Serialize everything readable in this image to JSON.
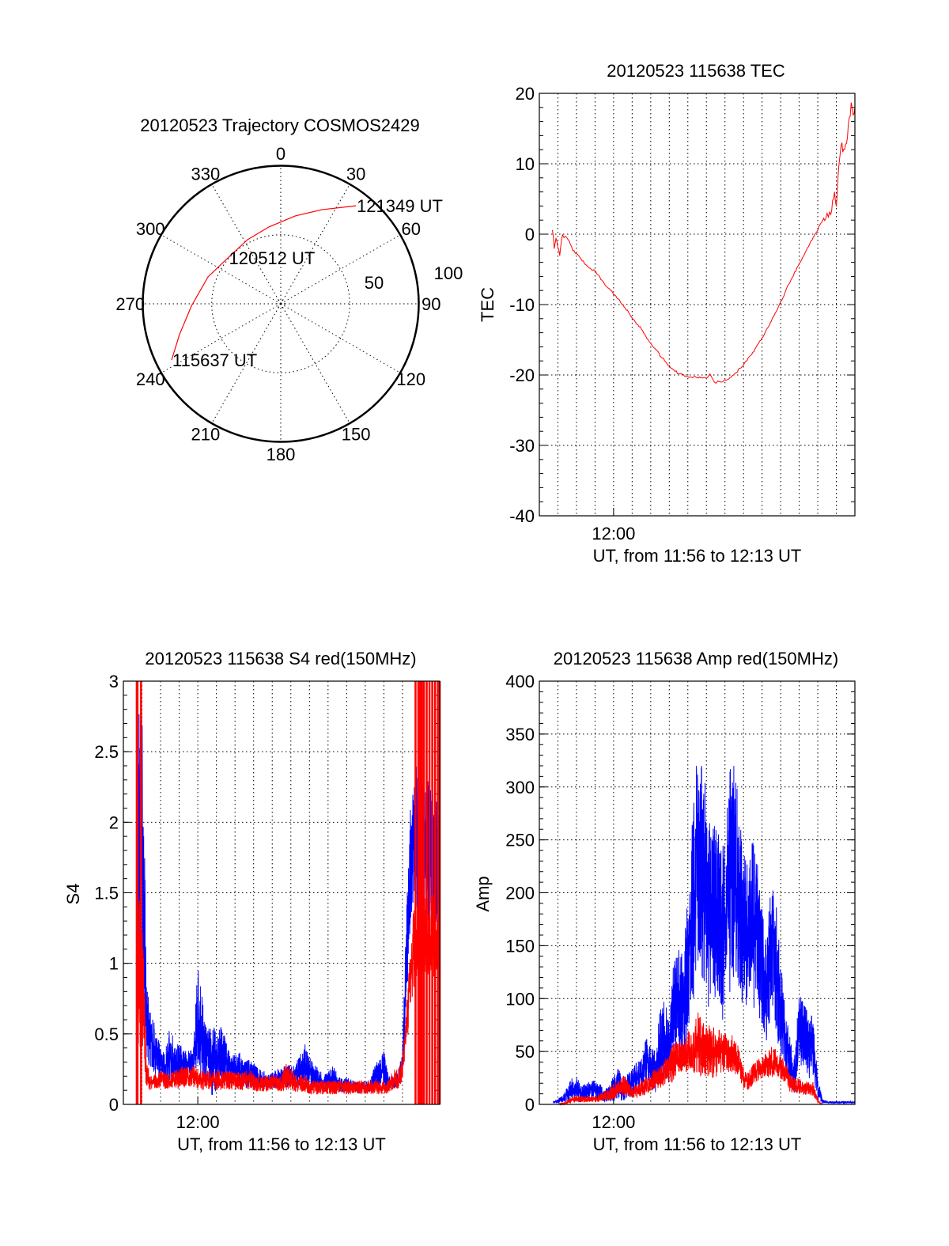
{
  "colors": {
    "red": "#ff0000",
    "blue": "#0000ff",
    "axis": "#000000"
  },
  "polar": {
    "title": "20120523 Trajectory COSMOS2429",
    "azimuth_labels": [
      "0",
      "30",
      "60",
      "90",
      "120",
      "150",
      "180",
      "210",
      "240",
      "270",
      "300",
      "330"
    ],
    "radial_labels": [
      "50",
      "100"
    ],
    "radial_max": 100,
    "trajectory": [
      {
        "az": 242.8,
        "r": 88.9
      },
      {
        "az": 253.1,
        "r": 76.7
      },
      {
        "az": 268.5,
        "r": 64.8
      },
      {
        "az": 290.3,
        "r": 56.2
      },
      {
        "az": 310.0,
        "r": 50.8
      },
      {
        "az": 332.6,
        "r": 52.3
      },
      {
        "az": 351.2,
        "r": 56.3
      },
      {
        "az": 9.2,
        "r": 64.4
      },
      {
        "az": 23.6,
        "r": 74.4
      },
      {
        "az": 37.5,
        "r": 89.5
      }
    ],
    "time_labels": [
      {
        "text": "115637 UT",
        "az": 242.8,
        "r": 88.9
      },
      {
        "text": "120512 UT",
        "az": 311.0,
        "r": 50.5
      },
      {
        "text": "121349 UT",
        "az": 37.5,
        "r": 89.5
      }
    ]
  },
  "chart_data": [
    {
      "id": "tec",
      "type": "line",
      "title": "20120523 115638 TEC",
      "ylabel": "TEC",
      "xlabel": "UT, from 11:56 to 12:13 UT",
      "x_unit": "minutes after 11:56 UT",
      "xlim": [
        0,
        17
      ],
      "ylim": [
        -40,
        20
      ],
      "x_tick_labels": [
        {
          "t": 4,
          "label": "12:00"
        }
      ],
      "y_ticks": [
        "-40",
        "-30",
        "-20",
        "-10",
        "0",
        "10",
        "20"
      ],
      "y_minor": 2,
      "grid": true,
      "series": [
        {
          "name": "TEC",
          "color": "#ff0000",
          "x": [
            0.7,
            0.8,
            0.9,
            1.0,
            1.1,
            1.15,
            1.25,
            1.4,
            1.6,
            1.8,
            2.0,
            2.5,
            3.0,
            3.5,
            4.0,
            4.5,
            5.0,
            5.5,
            6.0,
            6.5,
            7.0,
            7.5,
            8.0,
            8.5,
            9.0,
            9.2,
            9.4,
            9.8,
            10.2,
            10.6,
            11.0,
            11.5,
            12.0,
            12.5,
            13.0,
            13.5,
            14.0,
            14.5,
            15.0,
            15.5,
            15.7,
            15.8,
            15.9,
            16.0,
            16.1,
            16.2,
            16.3,
            16.4,
            16.5,
            16.6,
            16.7,
            16.8,
            16.9,
            17.0
          ],
          "y": [
            0,
            -1.5,
            -0.5,
            -2,
            -3,
            -1.5,
            -0.5,
            -0.3,
            -1,
            -2.2,
            -2.8,
            -4.3,
            -5.3,
            -7,
            -8.5,
            -10,
            -11.8,
            -13.5,
            -15.5,
            -17.2,
            -18.7,
            -19.8,
            -20.2,
            -20.3,
            -20.5,
            -20,
            -21,
            -21,
            -20.5,
            -19.7,
            -18.5,
            -16.8,
            -14.7,
            -12.3,
            -9.7,
            -6.7,
            -4.2,
            -1.7,
            0.7,
            3.0,
            2.8,
            5,
            5.8,
            4.5,
            8,
            11.5,
            12.5,
            11.8,
            12.5,
            14,
            16.5,
            18.2,
            16.8,
            18
          ]
        }
      ]
    },
    {
      "id": "s4",
      "type": "line",
      "title": "20120523 115638 S4 red(150MHz)",
      "ylabel": "S4",
      "xlabel": "UT, from 11:56 to 12:13 UT",
      "x_unit": "minutes after 11:56 UT",
      "xlim": [
        0,
        17
      ],
      "ylim": [
        0,
        3
      ],
      "x_tick_labels": [
        {
          "t": 4,
          "label": "12:00"
        }
      ],
      "y_ticks": [
        "0",
        "0.5",
        "1",
        "1.5",
        "2",
        "2.5",
        "3"
      ],
      "y_minor": 0.1,
      "grid": true,
      "t_start": 0.75,
      "t_step": 0.25,
      "series": [
        {
          "name": "blue",
          "color": "#0000ff",
          "mean": [
            1.9,
            1.9,
            0.6,
            0.45,
            0.35,
            0.3,
            0.28,
            0.35,
            0.3,
            0.3,
            0.28,
            0.3,
            0.3,
            0.6,
            0.45,
            0.35,
            0.35,
            0.3,
            0.35,
            0.3,
            0.25,
            0.25,
            0.25,
            0.2,
            0.22,
            0.2,
            0.18,
            0.18,
            0.15,
            0.17,
            0.18,
            0.2,
            0.2,
            0.2,
            0.2,
            0.25,
            0.28,
            0.25,
            0.2,
            0.18,
            0.15,
            0.16,
            0.2,
            0.16,
            0.13,
            0.14,
            0.13,
            0.12,
            0.12,
            0.12,
            0.13,
            0.2,
            0.22,
            0.25,
            0.15,
            0.15,
            0.17,
            0.3,
            1.2,
            1.8,
            1.8,
            1.8,
            1.8,
            1.8,
            1.8,
            1.7
          ],
          "spread": [
            1.1,
            1.1,
            0.3,
            0.2,
            0.2,
            0.12,
            0.1,
            0.2,
            0.15,
            0.15,
            0.1,
            0.1,
            0.1,
            0.4,
            0.3,
            0.2,
            0.3,
            0.2,
            0.25,
            0.15,
            0.1,
            0.1,
            0.12,
            0.1,
            0.1,
            0.1,
            0.07,
            0.07,
            0.06,
            0.06,
            0.07,
            0.07,
            0.08,
            0.08,
            0.08,
            0.12,
            0.15,
            0.1,
            0.08,
            0.08,
            0.06,
            0.07,
            0.08,
            0.06,
            0.05,
            0.05,
            0.05,
            0.04,
            0.04,
            0.04,
            0.04,
            0.08,
            0.1,
            0.15,
            0.05,
            0.05,
            0.05,
            0.1,
            0.4,
            0.5,
            0.6,
            0.5,
            0.5,
            0.5,
            0.5,
            0.4
          ]
        },
        {
          "name": "red",
          "color": "#ff0000",
          "mean": [
            1.2,
            1.0,
            0.2,
            0.15,
            0.17,
            0.18,
            0.18,
            0.16,
            0.18,
            0.18,
            0.2,
            0.2,
            0.2,
            0.18,
            0.17,
            0.17,
            0.17,
            0.17,
            0.17,
            0.17,
            0.17,
            0.17,
            0.17,
            0.17,
            0.17,
            0.17,
            0.15,
            0.15,
            0.15,
            0.15,
            0.15,
            0.15,
            0.2,
            0.18,
            0.15,
            0.15,
            0.15,
            0.12,
            0.12,
            0.12,
            0.12,
            0.12,
            0.12,
            0.12,
            0.12,
            0.12,
            0.12,
            0.12,
            0.12,
            0.12,
            0.12,
            0.12,
            0.12,
            0.12,
            0.12,
            0.18,
            0.18,
            0.25,
            0.6,
            1.0,
            1.2,
            1.2,
            1.2,
            1.2,
            1.2,
            1.2
          ],
          "spread": [
            0.8,
            0.6,
            0.1,
            0.05,
            0.06,
            0.06,
            0.07,
            0.06,
            0.07,
            0.07,
            0.08,
            0.08,
            0.08,
            0.07,
            0.07,
            0.07,
            0.07,
            0.07,
            0.07,
            0.07,
            0.07,
            0.07,
            0.07,
            0.07,
            0.07,
            0.07,
            0.06,
            0.06,
            0.06,
            0.06,
            0.06,
            0.06,
            0.1,
            0.08,
            0.06,
            0.06,
            0.06,
            0.05,
            0.05,
            0.05,
            0.05,
            0.05,
            0.05,
            0.05,
            0.05,
            0.05,
            0.05,
            0.05,
            0.05,
            0.05,
            0.05,
            0.05,
            0.05,
            0.05,
            0.05,
            0.07,
            0.07,
            0.08,
            0.15,
            0.3,
            0.3,
            0.3,
            0.3,
            0.3,
            0.3,
            0.3
          ],
          "full_range_spikes": [
            0.72,
            0.76,
            0.95,
            15.7,
            15.85,
            15.95,
            16.05,
            16.15,
            16.3,
            16.45,
            16.6,
            16.75,
            16.9,
            17.0
          ]
        }
      ]
    },
    {
      "id": "amp",
      "type": "line",
      "title": "20120523 115638 Amp red(150MHz)",
      "ylabel": "Amp",
      "xlabel": "UT, from 11:56 to 12:13 UT",
      "x_unit": "minutes after 11:56 UT",
      "xlim": [
        0,
        17
      ],
      "ylim": [
        0,
        400
      ],
      "x_tick_labels": [
        {
          "t": 4,
          "label": "12:00"
        }
      ],
      "y_ticks": [
        "0",
        "50",
        "100",
        "150",
        "200",
        "250",
        "300",
        "350",
        "400"
      ],
      "y_minor": 10,
      "grid": true,
      "t_start": 0.75,
      "t_step": 0.25,
      "series": [
        {
          "name": "blue",
          "color": "#0000ff",
          "mean": [
            2,
            3,
            5,
            10,
            15,
            15,
            10,
            12,
            14,
            15,
            12,
            8,
            10,
            15,
            20,
            12,
            18,
            20,
            25,
            25,
            40,
            35,
            30,
            55,
            60,
            50,
            90,
            100,
            90,
            130,
            180,
            230,
            220,
            200,
            170,
            190,
            160,
            170,
            210,
            220,
            200,
            160,
            150,
            170,
            160,
            130,
            110,
            150,
            130,
            90,
            60,
            40,
            30,
            70,
            65,
            60,
            50,
            15,
            3,
            2,
            2,
            2,
            2,
            2,
            2,
            2
          ],
          "spread": [
            1,
            2,
            4,
            7,
            10,
            12,
            8,
            8,
            10,
            10,
            8,
            6,
            8,
            12,
            15,
            10,
            12,
            15,
            15,
            18,
            25,
            20,
            20,
            35,
            40,
            30,
            50,
            50,
            50,
            70,
            90,
            100,
            100,
            100,
            90,
            90,
            80,
            90,
            110,
            100,
            90,
            80,
            80,
            80,
            70,
            60,
            50,
            60,
            60,
            50,
            30,
            25,
            20,
            35,
            30,
            35,
            30,
            12,
            2,
            1,
            1,
            1,
            1,
            1,
            1,
            1
          ]
        },
        {
          "name": "red",
          "color": "#ff0000",
          "mean": [
            0,
            0,
            1,
            2,
            5,
            5,
            5,
            5,
            5,
            5,
            6,
            8,
            10,
            12,
            15,
            18,
            15,
            12,
            12,
            15,
            18,
            20,
            25,
            25,
            30,
            35,
            40,
            45,
            45,
            50,
            45,
            60,
            55,
            50,
            50,
            50,
            50,
            50,
            48,
            45,
            40,
            25,
            22,
            28,
            32,
            35,
            38,
            40,
            40,
            35,
            30,
            20,
            18,
            17,
            15,
            15,
            15,
            3,
            0,
            0,
            0,
            0,
            0,
            0,
            0,
            0
          ],
          "spread": [
            0,
            0,
            1,
            2,
            3,
            3,
            3,
            3,
            3,
            3,
            4,
            5,
            6,
            8,
            8,
            10,
            8,
            6,
            6,
            8,
            8,
            8,
            10,
            10,
            12,
            15,
            20,
            15,
            15,
            20,
            20,
            30,
            30,
            25,
            25,
            25,
            20,
            20,
            18,
            20,
            15,
            10,
            8,
            10,
            10,
            10,
            12,
            15,
            12,
            12,
            10,
            8,
            8,
            8,
            6,
            6,
            7,
            2,
            0,
            0,
            0,
            0,
            0,
            0,
            0,
            0
          ]
        }
      ]
    }
  ]
}
